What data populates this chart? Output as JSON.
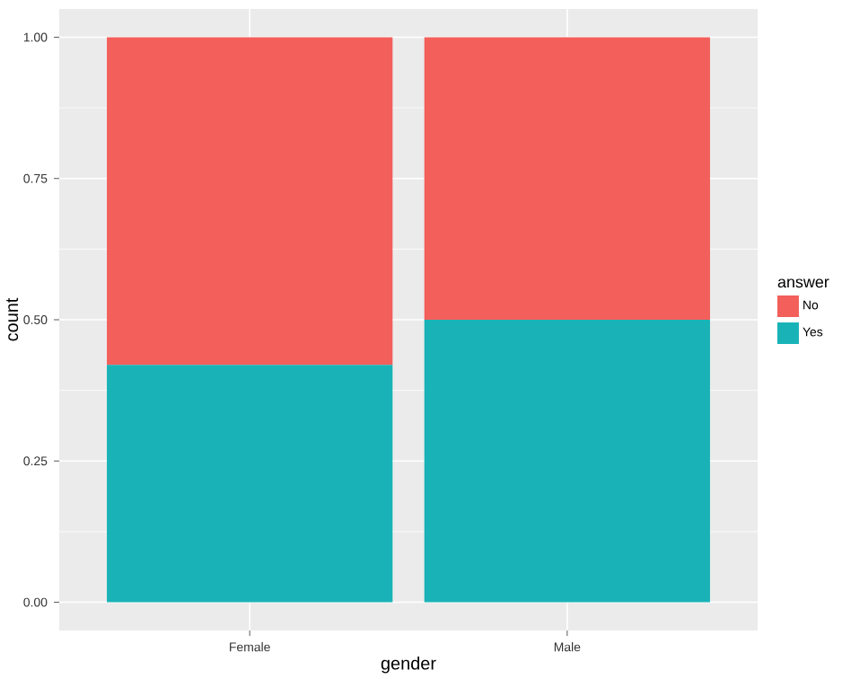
{
  "chart_data": {
    "type": "bar",
    "stacked": true,
    "xlabel": "gender",
    "ylabel": "count",
    "legend_title": "answer",
    "categories": [
      "Female",
      "Male"
    ],
    "series": [
      {
        "name": "Yes",
        "color": "#19b3b7",
        "values": [
          0.42,
          0.5
        ]
      },
      {
        "name": "No",
        "color": "#f35f5a",
        "values": [
          0.58,
          0.5
        ]
      }
    ],
    "ylim": [
      -0.05,
      1.05
    ],
    "yticks": [
      {
        "value": 0,
        "label": "0.00"
      },
      {
        "value": 0.25,
        "label": "0.25"
      },
      {
        "value": 0.5,
        "label": "0.50"
      },
      {
        "value": 0.75,
        "label": "0.75"
      },
      {
        "value": 1,
        "label": "1.00"
      }
    ],
    "grid": true,
    "legend": "right"
  }
}
